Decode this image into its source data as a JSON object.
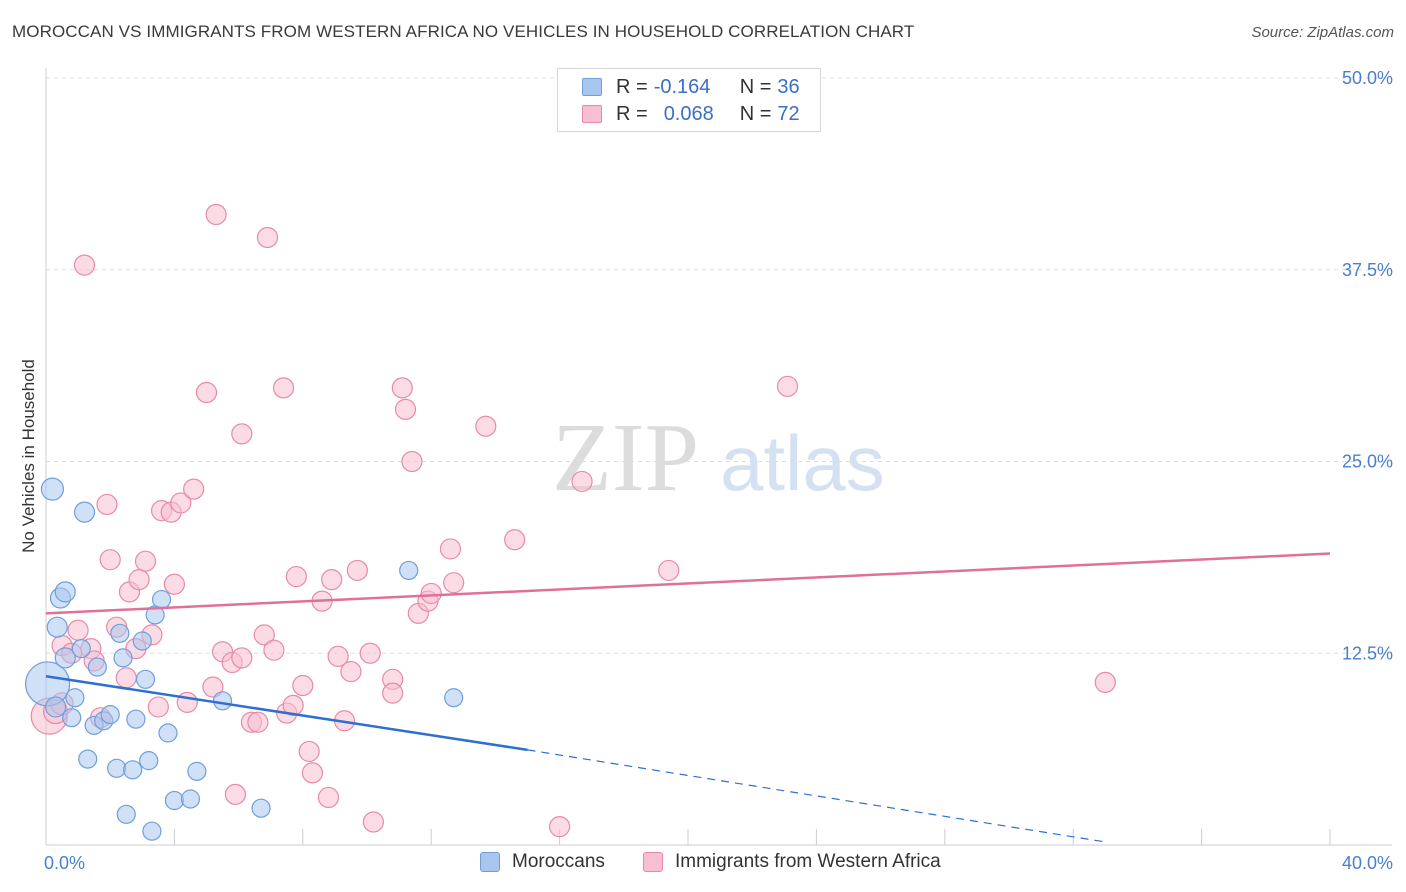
{
  "title": "MOROCCAN VS IMMIGRANTS FROM WESTERN AFRICA NO VEHICLES IN HOUSEHOLD CORRELATION CHART",
  "source": "Source: ZipAtlas.com",
  "watermark": {
    "zip": "ZIP",
    "atlas": "atlas"
  },
  "legend": {
    "rows": [
      {
        "r_label": "R =",
        "r_value": "-0.164",
        "n_label": "N =",
        "n_value": "36",
        "color": "#a9c6ee",
        "border": "#6f9fdb"
      },
      {
        "r_label": "R =",
        "r_value": "0.068",
        "n_label": "N =",
        "n_value": "72",
        "color": "#f7bfd0",
        "border": "#e889a8"
      }
    ]
  },
  "bottom_legend": [
    {
      "label": "Moroccans",
      "color": "#a9c6ee",
      "border": "#6f9fdb"
    },
    {
      "label": "Immigrants from Western Africa",
      "color": "#f7bfd0",
      "border": "#e889a8"
    }
  ],
  "chart_data": {
    "type": "scatter",
    "title": "MOROCCAN VS IMMIGRANTS FROM WESTERN AFRICA NO VEHICLES IN HOUSEHOLD CORRELATION CHART",
    "xlabel": "",
    "ylabel": "No Vehicles in Household",
    "xlim": [
      0,
      40
    ],
    "ylim": [
      0,
      50
    ],
    "x_tick_labels": [
      {
        "value": 0,
        "label": "0.0%"
      },
      {
        "value": 40,
        "label": "40.0%"
      }
    ],
    "y_tick_labels": [
      {
        "value": 12.5,
        "label": "12.5%"
      },
      {
        "value": 25.0,
        "label": "25.0%"
      },
      {
        "value": 37.5,
        "label": "37.5%"
      },
      {
        "value": 50.0,
        "label": "50.0%"
      }
    ],
    "grid": true,
    "series": [
      {
        "name": "Moroccans",
        "color": "#a9c6ee",
        "stroke": "#6f9fdb",
        "line_color": "#2f6fd0",
        "trend": {
          "x0": 0,
          "y0": 11.0,
          "x1": 15.0,
          "y1": 6.2,
          "dash_to_x": 33.0,
          "dash_to_y": 0.2
        },
        "points": [
          [
            0.05,
            10.5,
            22
          ],
          [
            0.2,
            23.2,
            11
          ],
          [
            0.35,
            14.2,
            10
          ],
          [
            0.45,
            16.1,
            10
          ],
          [
            0.6,
            16.5,
            10
          ],
          [
            0.6,
            12.2,
            10
          ],
          [
            0.8,
            8.3,
            9
          ],
          [
            0.9,
            9.6,
            9
          ],
          [
            1.1,
            12.8,
            9
          ],
          [
            1.2,
            21.7,
            10
          ],
          [
            1.3,
            5.6,
            9
          ],
          [
            1.5,
            7.8,
            9
          ],
          [
            1.6,
            11.6,
            9
          ],
          [
            1.8,
            8.1,
            9
          ],
          [
            2.0,
            8.5,
            9
          ],
          [
            2.2,
            5.0,
            9
          ],
          [
            2.3,
            13.8,
            9
          ],
          [
            2.4,
            12.2,
            9
          ],
          [
            2.5,
            2.0,
            9
          ],
          [
            2.7,
            4.9,
            9
          ],
          [
            2.8,
            8.2,
            9
          ],
          [
            3.0,
            13.3,
            9
          ],
          [
            3.1,
            10.8,
            9
          ],
          [
            3.2,
            5.5,
            9
          ],
          [
            3.3,
            0.9,
            9
          ],
          [
            3.4,
            15.0,
            9
          ],
          [
            3.6,
            16.0,
            9
          ],
          [
            3.8,
            7.3,
            9
          ],
          [
            4.0,
            2.9,
            9
          ],
          [
            4.5,
            3.0,
            9
          ],
          [
            4.7,
            4.8,
            9
          ],
          [
            5.5,
            9.4,
            9
          ],
          [
            6.7,
            2.4,
            9
          ],
          [
            11.3,
            17.9,
            9
          ],
          [
            12.7,
            9.6,
            9
          ],
          [
            0.3,
            9.0,
            10
          ]
        ]
      },
      {
        "name": "Immigrants from Western Africa",
        "color": "#f7bfd0",
        "stroke": "#e889a8",
        "line_color": "#e0709a",
        "trend": {
          "x0": 0,
          "y0": 15.1,
          "x1": 40,
          "y1": 19.0
        },
        "points": [
          [
            0.1,
            8.4,
            18
          ],
          [
            0.3,
            8.7,
            12
          ],
          [
            0.5,
            9.2,
            11
          ],
          [
            0.5,
            13.0,
            10
          ],
          [
            0.8,
            12.5,
            10
          ],
          [
            1.0,
            14.0,
            10
          ],
          [
            1.2,
            37.8,
            10
          ],
          [
            1.4,
            12.8,
            10
          ],
          [
            1.5,
            12.0,
            10
          ],
          [
            1.7,
            8.3,
            10
          ],
          [
            1.9,
            22.2,
            10
          ],
          [
            2.0,
            18.6,
            10
          ],
          [
            2.2,
            14.2,
            10
          ],
          [
            2.5,
            10.9,
            10
          ],
          [
            2.6,
            16.5,
            10
          ],
          [
            2.8,
            12.8,
            10
          ],
          [
            2.9,
            17.3,
            10
          ],
          [
            3.1,
            18.5,
            10
          ],
          [
            3.3,
            13.7,
            10
          ],
          [
            3.5,
            9.0,
            10
          ],
          [
            3.6,
            21.8,
            10
          ],
          [
            3.9,
            21.7,
            10
          ],
          [
            4.0,
            17.0,
            10
          ],
          [
            4.2,
            22.3,
            10
          ],
          [
            4.4,
            9.3,
            10
          ],
          [
            4.6,
            23.2,
            10
          ],
          [
            5.0,
            29.5,
            10
          ],
          [
            5.2,
            10.3,
            10
          ],
          [
            5.3,
            41.1,
            10
          ],
          [
            5.5,
            12.6,
            10
          ],
          [
            5.8,
            11.9,
            10
          ],
          [
            5.9,
            3.3,
            10
          ],
          [
            6.1,
            26.8,
            10
          ],
          [
            6.1,
            12.2,
            10
          ],
          [
            6.4,
            8.0,
            10
          ],
          [
            6.6,
            8.0,
            10
          ],
          [
            6.8,
            13.7,
            10
          ],
          [
            6.9,
            39.6,
            10
          ],
          [
            7.1,
            12.7,
            10
          ],
          [
            7.4,
            29.8,
            10
          ],
          [
            7.5,
            8.6,
            10
          ],
          [
            7.7,
            9.1,
            10
          ],
          [
            7.8,
            17.5,
            10
          ],
          [
            8.0,
            10.4,
            10
          ],
          [
            8.2,
            6.1,
            10
          ],
          [
            8.3,
            4.7,
            10
          ],
          [
            8.6,
            15.9,
            10
          ],
          [
            8.8,
            3.1,
            10
          ],
          [
            8.9,
            17.3,
            10
          ],
          [
            9.1,
            12.3,
            10
          ],
          [
            9.3,
            8.1,
            10
          ],
          [
            9.5,
            11.3,
            10
          ],
          [
            9.7,
            17.9,
            10
          ],
          [
            10.1,
            12.5,
            10
          ],
          [
            10.2,
            1.5,
            10
          ],
          [
            10.8,
            10.8,
            10
          ],
          [
            10.8,
            9.9,
            10
          ],
          [
            11.1,
            29.8,
            10
          ],
          [
            11.2,
            28.4,
            10
          ],
          [
            11.4,
            25.0,
            10
          ],
          [
            11.6,
            15.1,
            10
          ],
          [
            11.9,
            15.9,
            10
          ],
          [
            12.0,
            16.4,
            10
          ],
          [
            12.6,
            19.3,
            10
          ],
          [
            12.7,
            17.1,
            10
          ],
          [
            13.7,
            27.3,
            10
          ],
          [
            14.6,
            19.9,
            10
          ],
          [
            16.0,
            1.2,
            10
          ],
          [
            16.7,
            23.7,
            10
          ],
          [
            19.4,
            17.9,
            10
          ],
          [
            23.1,
            29.9,
            10
          ],
          [
            33.0,
            10.6,
            10
          ]
        ]
      }
    ]
  }
}
